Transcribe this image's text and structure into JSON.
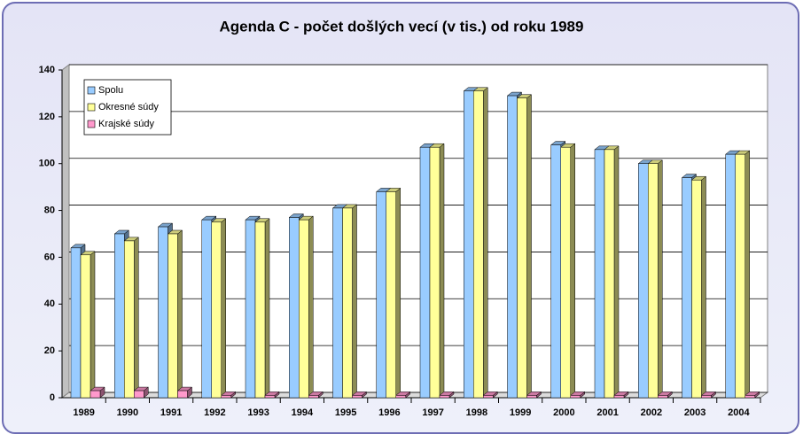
{
  "chart_data": {
    "type": "bar3d",
    "title": "Agenda C - počet došlých vecí (v tis.) od roku 1989",
    "categories": [
      "1989",
      "1990",
      "1991",
      "1992",
      "1993",
      "1994",
      "1995",
      "1996",
      "1997",
      "1998",
      "1999",
      "2000",
      "2001",
      "2002",
      "2003",
      "2004"
    ],
    "series": [
      {
        "name": "Spolu",
        "color": "#99ccff",
        "values": [
          64,
          70,
          73,
          76,
          76,
          77,
          81,
          88,
          107,
          131,
          129,
          108,
          106,
          100,
          94,
          104
        ]
      },
      {
        "name": "Okresné súdy",
        "color": "#ffff99",
        "values": [
          61,
          67,
          70,
          75,
          75,
          76,
          81,
          88,
          107,
          131,
          128,
          107,
          106,
          100,
          93,
          104
        ]
      },
      {
        "name": "Krajské súdy",
        "color": "#ff99cc",
        "values": [
          3,
          3,
          3,
          1,
          1,
          1,
          1,
          1,
          1,
          1,
          1,
          1,
          1,
          1,
          1,
          1
        ]
      }
    ],
    "ylim": [
      0,
      140
    ],
    "yticks": [
      0,
      20,
      40,
      60,
      80,
      100,
      120,
      140
    ],
    "grid": true,
    "legend": "top-left"
  }
}
